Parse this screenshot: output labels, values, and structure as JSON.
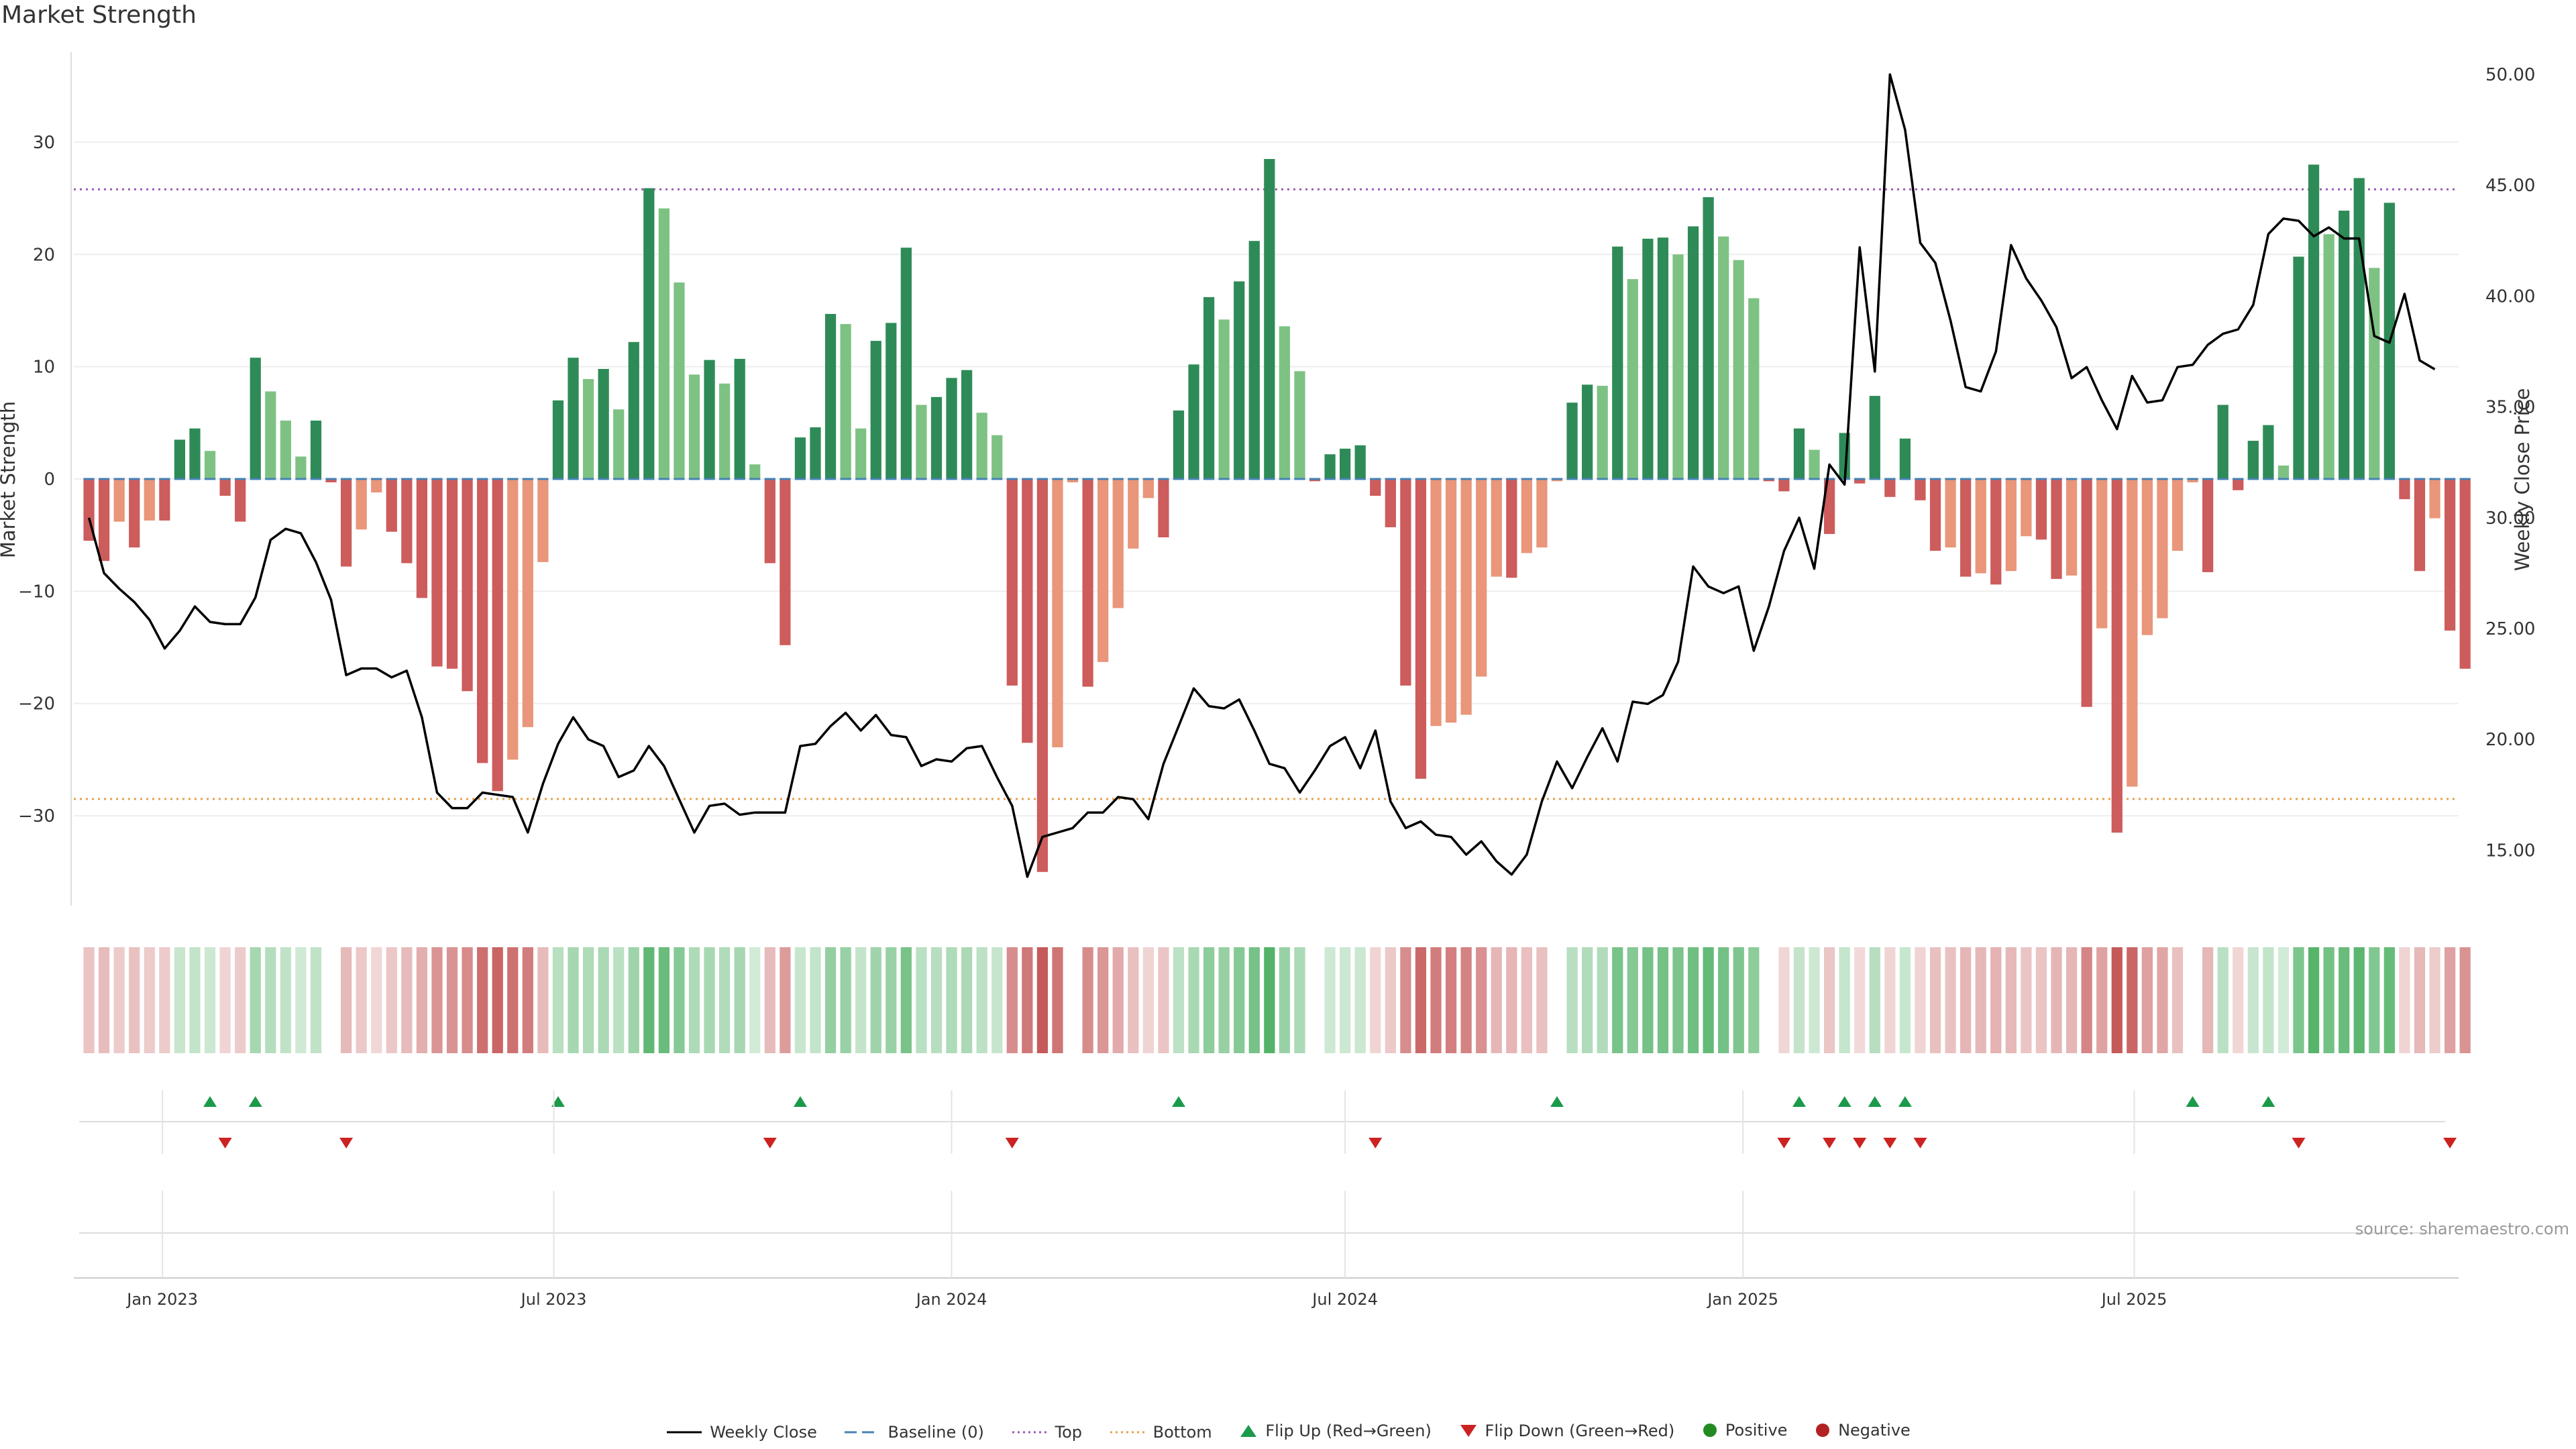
{
  "chart_data": {
    "type": "bar",
    "title": "Market Strength",
    "ylabel": "Market Strength",
    "y2label": "Weekly Close Price",
    "ylim": [
      -38,
      38
    ],
    "y2lim": [
      12.5,
      51
    ],
    "y_ticks": [
      30,
      20,
      10,
      0,
      -10,
      -20,
      -30
    ],
    "y_tick_labels": [
      "30",
      "20",
      "10",
      "0",
      "−10",
      "−20",
      "−30"
    ],
    "y2_ticks": [
      50,
      45,
      40,
      35,
      30,
      25,
      20,
      15
    ],
    "y2_tick_labels": [
      "50.00",
      "45.00",
      "40.00",
      "35.00",
      "30.00",
      "25.00",
      "20.00",
      "15.00"
    ],
    "x_range": [
      "2022-11-21",
      "2025-11-28"
    ],
    "x_ticks": [
      "2023-01-01",
      "2023-07-01",
      "2024-01-01",
      "2024-07-01",
      "2025-01-01",
      "2025-07-01"
    ],
    "x_tick_labels": [
      "Jan 2023",
      "Jul 2023",
      "Jan 2024",
      "Jul 2024",
      "Jan 2025",
      "Jul 2025"
    ],
    "top_level": 25.8,
    "bottom_level": -28.5,
    "start_week": "2022-11-28",
    "strength": [
      -5.5,
      -7.3,
      -3.8,
      -6.1,
      -3.7,
      -3.7,
      3.5,
      4.5,
      2.5,
      -1.5,
      -3.8,
      10.8,
      7.8,
      5.2,
      2.0,
      5.2,
      -0.3,
      -7.8,
      -4.5,
      -1.2,
      -4.7,
      -7.5,
      -10.6,
      -16.7,
      -16.9,
      -18.9,
      -25.3,
      -27.8,
      -25.0,
      -22.1,
      -7.4,
      7.0,
      10.8,
      8.9,
      9.8,
      6.2,
      12.2,
      25.9,
      24.1,
      17.5,
      9.3,
      10.6,
      8.5,
      10.7,
      1.3,
      -7.5,
      -14.8,
      3.7,
      4.6,
      14.7,
      13.8,
      4.5,
      12.3,
      13.9,
      20.6,
      6.6,
      7.3,
      9.0,
      9.7,
      5.9,
      3.9,
      -18.4,
      -23.5,
      -35.0,
      -23.9,
      -0.3,
      -18.5,
      -16.3,
      -11.5,
      -6.2,
      -1.7,
      -5.2,
      6.1,
      10.2,
      16.2,
      14.2,
      17.6,
      21.2,
      28.5,
      13.6,
      9.6,
      -0.2,
      2.2,
      2.7,
      3.0,
      -1.5,
      -4.3,
      -18.4,
      -26.7,
      -22.0,
      -21.7,
      -21.0,
      -17.6,
      -8.7,
      -8.8,
      -6.6,
      -6.1,
      -0.2,
      6.8,
      8.4,
      8.3,
      20.7,
      17.8,
      21.4,
      21.5,
      20.0,
      22.5,
      25.1,
      21.6,
      19.5,
      16.1,
      -0.2,
      -1.1,
      4.5,
      2.6,
      -4.9,
      4.1,
      -0.4,
      7.4,
      -1.6,
      3.6,
      -1.9,
      -6.4,
      -6.1,
      -8.7,
      -8.4,
      -9.4,
      -8.2,
      -5.1,
      -5.4,
      -8.9,
      -8.6,
      -20.3,
      -13.3,
      -31.5,
      -27.4,
      -13.9,
      -12.4,
      -6.4,
      -0.3,
      -8.3,
      6.6,
      -1.0,
      3.4,
      4.8,
      1.2,
      19.8,
      28.0,
      21.8,
      23.9,
      26.8,
      18.8,
      24.6,
      -1.8,
      -8.2,
      -3.5,
      -13.5,
      -16.9
    ],
    "close": [
      30.0,
      27.5,
      26.8,
      26.2,
      25.4,
      24.1,
      24.9,
      26.0,
      25.3,
      25.2,
      25.2,
      26.4,
      29.0,
      29.5,
      29.3,
      28.0,
      26.3,
      22.9,
      23.2,
      23.2,
      22.8,
      23.1,
      21.0,
      17.6,
      16.9,
      16.9,
      17.6,
      17.5,
      17.4,
      15.8,
      18.0,
      19.8,
      21.0,
      20.0,
      19.7,
      18.3,
      18.6,
      19.7,
      18.8,
      17.3,
      15.8,
      17.0,
      17.1,
      16.6,
      16.7,
      16.7,
      16.7,
      19.7,
      19.8,
      20.6,
      21.2,
      20.4,
      21.1,
      20.2,
      20.1,
      18.8,
      19.1,
      19.0,
      19.6,
      19.7,
      18.3,
      17.0,
      13.8,
      15.6,
      15.8,
      16.0,
      16.7,
      16.7,
      17.4,
      17.3,
      16.4,
      18.9,
      20.6,
      22.3,
      21.5,
      21.4,
      21.8,
      20.4,
      18.9,
      18.7,
      17.6,
      18.6,
      19.7,
      20.1,
      18.7,
      20.4,
      17.2,
      16.0,
      16.3,
      15.7,
      15.6,
      14.8,
      15.4,
      14.5,
      13.9,
      14.8,
      17.2,
      19.0,
      17.8,
      19.2,
      20.5,
      19.0,
      21.7,
      21.6,
      22.0,
      23.5,
      27.8,
      26.9,
      26.6,
      26.9,
      24.0,
      26.0,
      28.5,
      30.0,
      27.7,
      32.4,
      31.5,
      42.2,
      36.6,
      50.0,
      47.5,
      42.4,
      41.5,
      38.9,
      35.9,
      35.7,
      37.5,
      42.3,
      40.8,
      39.8,
      38.6,
      36.3,
      36.8,
      35.3,
      34.0,
      36.4,
      35.2,
      35.3,
      36.8,
      36.9,
      37.8,
      38.3,
      38.5,
      39.6,
      42.8,
      43.5,
      43.4,
      42.7,
      43.1,
      42.6,
      42.6,
      38.2,
      37.9,
      40.1,
      37.1,
      36.7
    ],
    "flip_up_weeks": [
      8,
      11,
      31,
      47,
      72,
      97,
      113,
      116,
      118,
      120,
      139,
      144
    ],
    "flip_down_weeks": [
      9,
      17,
      45,
      61,
      85,
      112,
      115,
      117,
      119,
      121,
      146,
      156
    ],
    "colors": {
      "strong_green": "#2e8b57",
      "light_green": "#7ec283",
      "strong_red": "#cd5c5c",
      "light_red": "#e9967a",
      "close_line": "#000000",
      "baseline": "#4682b4",
      "top": "#9b59b6",
      "bottom": "#e6a04d",
      "flip_up": "#1a9a4a",
      "flip_down": "#cc2222",
      "positive_dot": "#228b22",
      "negative_dot": "#b22222"
    }
  },
  "legend": {
    "weekly_close": "Weekly Close",
    "baseline": "Baseline (0)",
    "top": "Top",
    "bottom": "Bottom",
    "flip_up": "Flip Up (Red→Green)",
    "flip_down": "Flip Down (Green→Red)",
    "positive": "Positive",
    "negative": "Negative"
  },
  "source": "source: sharemaestro.com"
}
